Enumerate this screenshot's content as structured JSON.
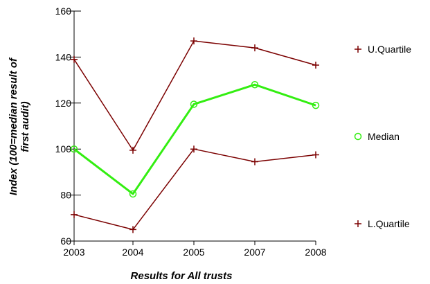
{
  "chart_data": {
    "type": "line",
    "categories": [
      "2003",
      "2004",
      "2005",
      "2007",
      "2008"
    ],
    "series": [
      {
        "name": "U.Quartile",
        "values": [
          139,
          99.5,
          147,
          144,
          136.5
        ],
        "color": "#7b0000",
        "marker": "plus"
      },
      {
        "name": "Median",
        "values": [
          100,
          80.5,
          119.5,
          128,
          119
        ],
        "color": "#33ee11",
        "marker": "circle"
      },
      {
        "name": "L.Quartile",
        "values": [
          71.5,
          65,
          100,
          94.5,
          97.5
        ],
        "color": "#7b0000",
        "marker": "plus"
      }
    ],
    "title": "",
    "xlabel": "Results for All trusts",
    "ylabel_line1": "Index (100=median result of",
    "ylabel_line2": "first audit)",
    "ylim": [
      60,
      160
    ],
    "yticks": [
      "60",
      "80",
      "100",
      "120",
      "140",
      "160"
    ],
    "grid": false,
    "legend_position": "right"
  }
}
